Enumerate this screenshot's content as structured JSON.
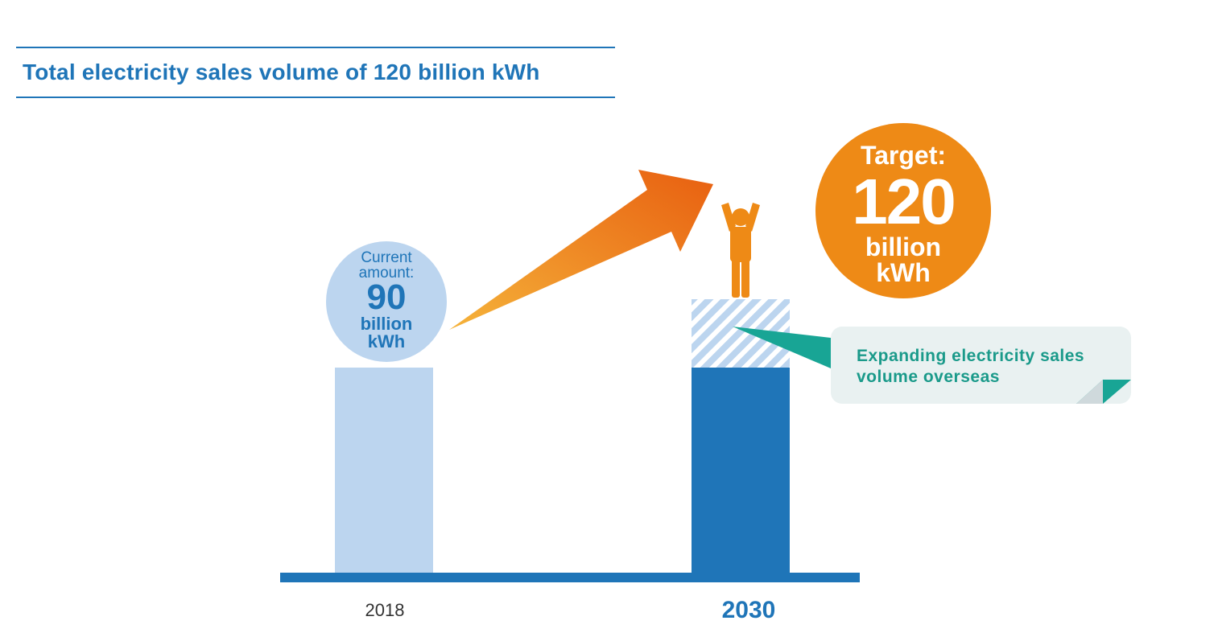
{
  "title": "Total electricity sales volume of 120 billion kWh",
  "colors": {
    "title": "#1f75b8",
    "baseline": "#1f75b8",
    "bar_2018": "#bcd5ef",
    "bar_2030": "#1f75b8",
    "hatch_light": "#bcd5ef",
    "arrow_start": "#f5b33a",
    "arrow_end": "#e85f10",
    "person": "#ee8a16",
    "target_circle": "#ee8a16",
    "current_circle": "#bcd5ef",
    "callout_bg": "#e9f1f1",
    "callout_accent": "#18a595"
  },
  "current_circle": {
    "label": "Current amount:",
    "label_line1": "Current",
    "label_line2": "amount:",
    "value": "90",
    "unit_line1": "billion",
    "unit_line2": "kWh"
  },
  "target_circle": {
    "label": "Target:",
    "value": "120",
    "unit_line1": "billion",
    "unit_line2": "kWh"
  },
  "callout": {
    "line1": "Expanding electricity sales",
    "line2": "volume overseas"
  },
  "icons": {
    "growth_arrow": "up-right-arrow-icon",
    "person": "person-arms-raised-icon"
  },
  "chart_data": {
    "type": "bar",
    "categories": [
      "2018",
      "2030"
    ],
    "series": [
      {
        "name": "",
        "values": [
          90,
          90
        ]
      },
      {
        "name": "Expanding electricity sales volume overseas",
        "values": [
          0,
          30
        ]
      }
    ],
    "stacked": true,
    "totals": [
      90,
      120
    ],
    "unit": "billion kWh",
    "title": "Total electricity sales volume of 120 billion kWh",
    "xlabel": "",
    "ylabel": "",
    "ylim": [
      0,
      120
    ],
    "grid": false,
    "legend": "none"
  }
}
